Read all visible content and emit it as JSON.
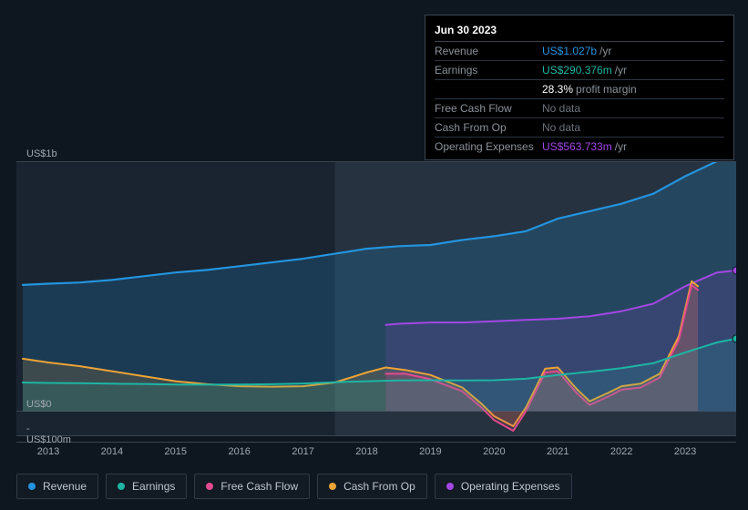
{
  "tooltip": {
    "date": "Jun 30 2023",
    "rows": [
      {
        "label": "Revenue",
        "value": "US$1.027b",
        "unit": "/yr",
        "color": "#2394df",
        "nodata": false
      },
      {
        "label": "Earnings",
        "value": "US$290.376m",
        "unit": "/yr",
        "color": "#1db5a4",
        "nodata": false
      },
      {
        "label": "",
        "value": "28.3%",
        "unit": "profit margin",
        "color": "#ffffff",
        "nodata": false,
        "sub": true
      },
      {
        "label": "Free Cash Flow",
        "value": "No data",
        "unit": "",
        "color": "",
        "nodata": true
      },
      {
        "label": "Cash From Op",
        "value": "No data",
        "unit": "",
        "color": "",
        "nodata": true
      },
      {
        "label": "Operating Expenses",
        "value": "US$563.733m",
        "unit": "/yr",
        "color": "#a347e5",
        "nodata": false
      }
    ]
  },
  "chart": {
    "type": "area-line",
    "background_color": "#0e1620",
    "plot_band_color": "#1a2430",
    "highlight_band_color": "#26323f",
    "border_color": "#3a4550",
    "axis_text_color": "#a0a8b0",
    "x": {
      "min": 2012.5,
      "max": 2023.8,
      "ticks": [
        2013,
        2014,
        2015,
        2016,
        2017,
        2018,
        2019,
        2020,
        2021,
        2022,
        2023
      ]
    },
    "y": {
      "min_value": -100,
      "max_value": 1000,
      "labels": [
        {
          "text": "US$1b",
          "value": 1000
        },
        {
          "text": "US$0",
          "value": 0
        },
        {
          "text": "-US$100m",
          "value": -100
        }
      ]
    },
    "series": [
      {
        "name": "Revenue",
        "key": "revenue",
        "color": "#2394df",
        "fill_opacity": 0.2,
        "stroke_width": 2.2,
        "points": [
          [
            2012.6,
            505
          ],
          [
            2013,
            510
          ],
          [
            2013.5,
            515
          ],
          [
            2014,
            525
          ],
          [
            2014.5,
            540
          ],
          [
            2015,
            555
          ],
          [
            2015.5,
            565
          ],
          [
            2016,
            580
          ],
          [
            2016.5,
            595
          ],
          [
            2017,
            610
          ],
          [
            2017.5,
            630
          ],
          [
            2018,
            650
          ],
          [
            2018.5,
            660
          ],
          [
            2019,
            665
          ],
          [
            2019.5,
            685
          ],
          [
            2020,
            700
          ],
          [
            2020.5,
            720
          ],
          [
            2021,
            770
          ],
          [
            2021.5,
            800
          ],
          [
            2022,
            830
          ],
          [
            2022.5,
            870
          ],
          [
            2023,
            940
          ],
          [
            2023.5,
            1000
          ],
          [
            2023.8,
            1027
          ]
        ]
      },
      {
        "name": "Operating Expenses",
        "key": "opex",
        "color": "#a347e5",
        "fill_opacity": 0.14,
        "stroke_width": 2.0,
        "points": [
          [
            2018.3,
            345
          ],
          [
            2018.5,
            350
          ],
          [
            2019,
            355
          ],
          [
            2019.5,
            355
          ],
          [
            2020,
            360
          ],
          [
            2020.5,
            365
          ],
          [
            2021,
            370
          ],
          [
            2021.5,
            380
          ],
          [
            2022,
            400
          ],
          [
            2022.5,
            430
          ],
          [
            2023,
            500
          ],
          [
            2023.5,
            555
          ],
          [
            2023.8,
            563
          ]
        ]
      },
      {
        "name": "Cash From Op",
        "key": "cfo",
        "color": "#eca336",
        "fill_opacity": 0.16,
        "stroke_width": 2.0,
        "points": [
          [
            2012.6,
            210
          ],
          [
            2013,
            195
          ],
          [
            2013.5,
            180
          ],
          [
            2014,
            160
          ],
          [
            2014.5,
            140
          ],
          [
            2015,
            120
          ],
          [
            2015.5,
            108
          ],
          [
            2016,
            100
          ],
          [
            2016.5,
            98
          ],
          [
            2017,
            100
          ],
          [
            2017.5,
            115
          ],
          [
            2018,
            155
          ],
          [
            2018.3,
            175
          ],
          [
            2018.6,
            165
          ],
          [
            2019,
            145
          ],
          [
            2019.5,
            95
          ],
          [
            2019.8,
            30
          ],
          [
            2020,
            -20
          ],
          [
            2020.3,
            -60
          ],
          [
            2020.5,
            15
          ],
          [
            2020.8,
            170
          ],
          [
            2021,
            175
          ],
          [
            2021.3,
            88
          ],
          [
            2021.5,
            40
          ],
          [
            2021.8,
            75
          ],
          [
            2022,
            100
          ],
          [
            2022.3,
            110
          ],
          [
            2022.6,
            150
          ],
          [
            2022.9,
            300
          ],
          [
            2023.1,
            520
          ],
          [
            2023.2,
            500
          ]
        ]
      },
      {
        "name": "Free Cash Flow",
        "key": "fcf",
        "color": "#e24a8f",
        "fill_opacity": 0.14,
        "stroke_width": 2.0,
        "points": [
          [
            2018.3,
            150
          ],
          [
            2018.6,
            150
          ],
          [
            2019,
            128
          ],
          [
            2019.5,
            80
          ],
          [
            2019.8,
            15
          ],
          [
            2020,
            -35
          ],
          [
            2020.3,
            -78
          ],
          [
            2020.5,
            0
          ],
          [
            2020.8,
            155
          ],
          [
            2021,
            160
          ],
          [
            2021.3,
            72
          ],
          [
            2021.5,
            25
          ],
          [
            2021.8,
            60
          ],
          [
            2022,
            86
          ],
          [
            2022.3,
            95
          ],
          [
            2022.6,
            135
          ],
          [
            2022.9,
            285
          ],
          [
            2023.1,
            505
          ],
          [
            2023.2,
            485
          ]
        ]
      },
      {
        "name": "Earnings",
        "key": "earnings",
        "color": "#1db5a4",
        "fill_opacity": 0.14,
        "stroke_width": 2.0,
        "points": [
          [
            2012.6,
            115
          ],
          [
            2013,
            113
          ],
          [
            2013.5,
            112
          ],
          [
            2014,
            110
          ],
          [
            2014.5,
            109
          ],
          [
            2015,
            107
          ],
          [
            2015.5,
            106
          ],
          [
            2016,
            107
          ],
          [
            2016.5,
            108
          ],
          [
            2017,
            111
          ],
          [
            2017.5,
            116
          ],
          [
            2018,
            120
          ],
          [
            2018.5,
            123
          ],
          [
            2019,
            124
          ],
          [
            2019.5,
            123
          ],
          [
            2020,
            124
          ],
          [
            2020.5,
            130
          ],
          [
            2021,
            145
          ],
          [
            2021.5,
            158
          ],
          [
            2022,
            172
          ],
          [
            2022.5,
            192
          ],
          [
            2023,
            235
          ],
          [
            2023.5,
            275
          ],
          [
            2023.8,
            290
          ]
        ]
      }
    ],
    "marker_x": 2023.8,
    "legend_order": [
      "revenue",
      "earnings",
      "fcf",
      "cfo",
      "opex"
    ]
  },
  "legend": {
    "revenue": {
      "label": "Revenue",
      "color": "#2394df"
    },
    "earnings": {
      "label": "Earnings",
      "color": "#1db5a4"
    },
    "fcf": {
      "label": "Free Cash Flow",
      "color": "#e24a8f"
    },
    "cfo": {
      "label": "Cash From Op",
      "color": "#eca336"
    },
    "opex": {
      "label": "Operating Expenses",
      "color": "#a347e5"
    }
  }
}
